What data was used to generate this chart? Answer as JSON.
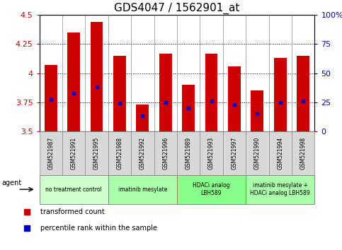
{
  "title": "GDS4047 / 1562901_at",
  "samples": [
    "GSM521987",
    "GSM521991",
    "GSM521995",
    "GSM521988",
    "GSM521992",
    "GSM521996",
    "GSM521989",
    "GSM521993",
    "GSM521997",
    "GSM521990",
    "GSM521994",
    "GSM521998"
  ],
  "bar_values": [
    4.07,
    4.35,
    4.44,
    4.15,
    3.73,
    4.17,
    3.9,
    4.17,
    4.06,
    3.85,
    4.13,
    4.15
  ],
  "percentile_values": [
    3.77,
    3.83,
    3.88,
    3.74,
    3.63,
    3.75,
    3.7,
    3.76,
    3.73,
    3.65,
    3.75,
    3.76
  ],
  "bar_color": "#cc0000",
  "percentile_color": "#0000cc",
  "ylim_left": [
    3.5,
    4.5
  ],
  "ylim_right": [
    0,
    100
  ],
  "yticks_left": [
    3.5,
    3.75,
    4.0,
    4.25,
    4.5
  ],
  "ytick_labels_left": [
    "3.5",
    "3.75",
    "4",
    "4.25",
    "4.5"
  ],
  "yticks_right": [
    0,
    25,
    50,
    75,
    100
  ],
  "ytick_labels_right": [
    "0",
    "25",
    "50",
    "75",
    "100%"
  ],
  "grid_lines": [
    3.75,
    4.0,
    4.25
  ],
  "agent_groups": [
    {
      "label": "no treatment control",
      "start": 0,
      "end": 3,
      "color": "#ccffcc"
    },
    {
      "label": "imatinib mesylate",
      "start": 3,
      "end": 6,
      "color": "#aaffaa"
    },
    {
      "label": "HDACi analog\nLBH589",
      "start": 6,
      "end": 9,
      "color": "#88ff88"
    },
    {
      "label": "imatinib mesylate +\nHDACi analog LBH589",
      "start": 9,
      "end": 12,
      "color": "#aaffaa"
    }
  ],
  "legend_red_label": "transformed count",
  "legend_blue_label": "percentile rank within the sample",
  "agent_label": "agent",
  "title_fontsize": 11,
  "axis_label_color_left": "#cc0000",
  "axis_label_color_right": "#0000cc",
  "bar_width": 0.55,
  "sample_box_color": "#d8d8d8",
  "border_color": "#888888"
}
